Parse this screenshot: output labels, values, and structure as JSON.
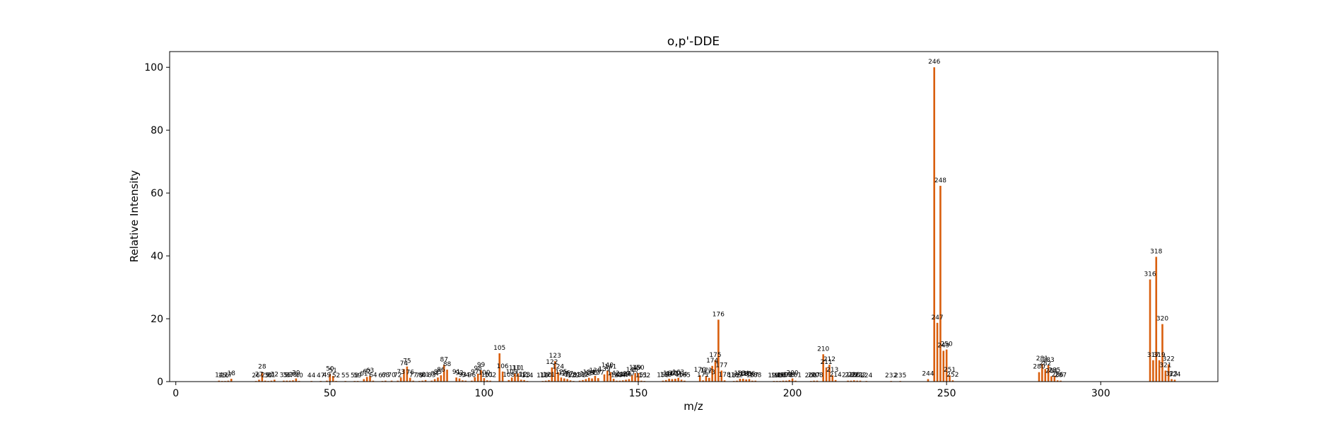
{
  "chart_data": {
    "type": "bar",
    "title": "o,p'-DDE",
    "xlabel": "m/z",
    "ylabel": "Relative Intensity",
    "xlim": [
      -2,
      338
    ],
    "ylim": [
      0,
      105
    ],
    "xticks": [
      0,
      50,
      100,
      150,
      200,
      250,
      300
    ],
    "yticks": [
      0,
      20,
      40,
      60,
      80,
      100
    ],
    "grid": false,
    "bar_color": "#d95f0e",
    "peaks": [
      {
        "mz": 14,
        "intensity": 0.3
      },
      {
        "mz": 15,
        "intensity": 0.2
      },
      {
        "mz": 16,
        "intensity": 0.2
      },
      {
        "mz": 17,
        "intensity": 0.3
      },
      {
        "mz": 18,
        "intensity": 0.9
      },
      {
        "mz": 26,
        "intensity": 0.2
      },
      {
        "mz": 27,
        "intensity": 0.6
      },
      {
        "mz": 28,
        "intensity": 3.0
      },
      {
        "mz": 29,
        "intensity": 0.3
      },
      {
        "mz": 30,
        "intensity": 0.2
      },
      {
        "mz": 31,
        "intensity": 0.3
      },
      {
        "mz": 32,
        "intensity": 0.6
      },
      {
        "mz": 35,
        "intensity": 0.3
      },
      {
        "mz": 36,
        "intensity": 0.3
      },
      {
        "mz": 37,
        "intensity": 0.3
      },
      {
        "mz": 38,
        "intensity": 0.4
      },
      {
        "mz": 39,
        "intensity": 1.0
      },
      {
        "mz": 40,
        "intensity": 0.2
      },
      {
        "mz": 44,
        "intensity": 0.2
      },
      {
        "mz": 47,
        "intensity": 0.2
      },
      {
        "mz": 49,
        "intensity": 0.3
      },
      {
        "mz": 50,
        "intensity": 2.4
      },
      {
        "mz": 51,
        "intensity": 1.8
      },
      {
        "mz": 52,
        "intensity": 0.2
      },
      {
        "mz": 55,
        "intensity": 0.2
      },
      {
        "mz": 58,
        "intensity": 0.2
      },
      {
        "mz": 59,
        "intensity": 0.2
      },
      {
        "mz": 61,
        "intensity": 0.8
      },
      {
        "mz": 62,
        "intensity": 1.5
      },
      {
        "mz": 63,
        "intensity": 1.8
      },
      {
        "mz": 64,
        "intensity": 0.3
      },
      {
        "mz": 67,
        "intensity": 0.2
      },
      {
        "mz": 68,
        "intensity": 0.3
      },
      {
        "mz": 70,
        "intensity": 0.3
      },
      {
        "mz": 72,
        "intensity": 0.3
      },
      {
        "mz": 73,
        "intensity": 1.3
      },
      {
        "mz": 74,
        "intensity": 4.0
      },
      {
        "mz": 75,
        "intensity": 4.8
      },
      {
        "mz": 76,
        "intensity": 1.2
      },
      {
        "mz": 77,
        "intensity": 0.3
      },
      {
        "mz": 79,
        "intensity": 0.2
      },
      {
        "mz": 80,
        "intensity": 0.3
      },
      {
        "mz": 81,
        "intensity": 0.5
      },
      {
        "mz": 83,
        "intensity": 0.3
      },
      {
        "mz": 84,
        "intensity": 0.8
      },
      {
        "mz": 85,
        "intensity": 1.3
      },
      {
        "mz": 86,
        "intensity": 2.0
      },
      {
        "mz": 87,
        "intensity": 5.3
      },
      {
        "mz": 88,
        "intensity": 3.8
      },
      {
        "mz": 91,
        "intensity": 1.3
      },
      {
        "mz": 92,
        "intensity": 1.0
      },
      {
        "mz": 93,
        "intensity": 0.4
      },
      {
        "mz": 94,
        "intensity": 0.3
      },
      {
        "mz": 96,
        "intensity": 0.3
      },
      {
        "mz": 97,
        "intensity": 1.4
      },
      {
        "mz": 98,
        "intensity": 2.5
      },
      {
        "mz": 99,
        "intensity": 3.6
      },
      {
        "mz": 100,
        "intensity": 1.1
      },
      {
        "mz": 101,
        "intensity": 0.4
      },
      {
        "mz": 102,
        "intensity": 0.3
      },
      {
        "mz": 105,
        "intensity": 9.0
      },
      {
        "mz": 106,
        "intensity": 3.2
      },
      {
        "mz": 108,
        "intensity": 0.5
      },
      {
        "mz": 109,
        "intensity": 1.3
      },
      {
        "mz": 110,
        "intensity": 2.6
      },
      {
        "mz": 111,
        "intensity": 2.6
      },
      {
        "mz": 112,
        "intensity": 0.6
      },
      {
        "mz": 113,
        "intensity": 0.5
      },
      {
        "mz": 114,
        "intensity": 0.2
      },
      {
        "mz": 119,
        "intensity": 0.2
      },
      {
        "mz": 120,
        "intensity": 0.3
      },
      {
        "mz": 121,
        "intensity": 0.5
      },
      {
        "mz": 122,
        "intensity": 4.5
      },
      {
        "mz": 123,
        "intensity": 6.5
      },
      {
        "mz": 124,
        "intensity": 3.0
      },
      {
        "mz": 125,
        "intensity": 1.3
      },
      {
        "mz": 126,
        "intensity": 1.0
      },
      {
        "mz": 127,
        "intensity": 0.8
      },
      {
        "mz": 128,
        "intensity": 0.4
      },
      {
        "mz": 129,
        "intensity": 0.2
      },
      {
        "mz": 131,
        "intensity": 0.3
      },
      {
        "mz": 132,
        "intensity": 0.5
      },
      {
        "mz": 133,
        "intensity": 0.8
      },
      {
        "mz": 134,
        "intensity": 1.2
      },
      {
        "mz": 135,
        "intensity": 1.0
      },
      {
        "mz": 136,
        "intensity": 1.8
      },
      {
        "mz": 137,
        "intensity": 1.1
      },
      {
        "mz": 139,
        "intensity": 2.3
      },
      {
        "mz": 140,
        "intensity": 3.5
      },
      {
        "mz": 141,
        "intensity": 3.0
      },
      {
        "mz": 142,
        "intensity": 0.9
      },
      {
        "mz": 143,
        "intensity": 0.3
      },
      {
        "mz": 144,
        "intensity": 0.3
      },
      {
        "mz": 145,
        "intensity": 0.4
      },
      {
        "mz": 146,
        "intensity": 0.6
      },
      {
        "mz": 147,
        "intensity": 0.8
      },
      {
        "mz": 148,
        "intensity": 2.0
      },
      {
        "mz": 149,
        "intensity": 2.7
      },
      {
        "mz": 150,
        "intensity": 2.7
      },
      {
        "mz": 151,
        "intensity": 0.3
      },
      {
        "mz": 152,
        "intensity": 0.2
      },
      {
        "mz": 158,
        "intensity": 0.3
      },
      {
        "mz": 159,
        "intensity": 0.5
      },
      {
        "mz": 160,
        "intensity": 0.9
      },
      {
        "mz": 161,
        "intensity": 0.8
      },
      {
        "mz": 162,
        "intensity": 0.9
      },
      {
        "mz": 163,
        "intensity": 1.2
      },
      {
        "mz": 164,
        "intensity": 0.6
      },
      {
        "mz": 165,
        "intensity": 0.3
      },
      {
        "mz": 170,
        "intensity": 2.0
      },
      {
        "mz": 171,
        "intensity": 0.4
      },
      {
        "mz": 172,
        "intensity": 1.8
      },
      {
        "mz": 173,
        "intensity": 1.2
      },
      {
        "mz": 174,
        "intensity": 5.0
      },
      {
        "mz": 175,
        "intensity": 6.8
      },
      {
        "mz": 176,
        "intensity": 19.7
      },
      {
        "mz": 177,
        "intensity": 3.5
      },
      {
        "mz": 178,
        "intensity": 0.4
      },
      {
        "mz": 181,
        "intensity": 0.2
      },
      {
        "mz": 182,
        "intensity": 0.3
      },
      {
        "mz": 183,
        "intensity": 0.9
      },
      {
        "mz": 184,
        "intensity": 0.9
      },
      {
        "mz": 185,
        "intensity": 0.7
      },
      {
        "mz": 186,
        "intensity": 0.8
      },
      {
        "mz": 187,
        "intensity": 0.3
      },
      {
        "mz": 188,
        "intensity": 0.3
      },
      {
        "mz": 194,
        "intensity": 0.2
      },
      {
        "mz": 195,
        "intensity": 0.2
      },
      {
        "mz": 196,
        "intensity": 0.2
      },
      {
        "mz": 197,
        "intensity": 0.3
      },
      {
        "mz": 198,
        "intensity": 0.3
      },
      {
        "mz": 199,
        "intensity": 0.5
      },
      {
        "mz": 200,
        "intensity": 1.0
      },
      {
        "mz": 201,
        "intensity": 0.3
      },
      {
        "mz": 206,
        "intensity": 0.2
      },
      {
        "mz": 207,
        "intensity": 0.3
      },
      {
        "mz": 208,
        "intensity": 0.3
      },
      {
        "mz": 210,
        "intensity": 8.7
      },
      {
        "mz": 211,
        "intensity": 4.5
      },
      {
        "mz": 212,
        "intensity": 5.4
      },
      {
        "mz": 213,
        "intensity": 2.0
      },
      {
        "mz": 214,
        "intensity": 0.5
      },
      {
        "mz": 218,
        "intensity": 0.3
      },
      {
        "mz": 219,
        "intensity": 0.3
      },
      {
        "mz": 220,
        "intensity": 0.4
      },
      {
        "mz": 221,
        "intensity": 0.3
      },
      {
        "mz": 222,
        "intensity": 0.3
      },
      {
        "mz": 224,
        "intensity": 0.2
      },
      {
        "mz": 232,
        "intensity": 0.2
      },
      {
        "mz": 235,
        "intensity": 0.2
      },
      {
        "mz": 244,
        "intensity": 0.8
      },
      {
        "mz": 246,
        "intensity": 100.0
      },
      {
        "mz": 247,
        "intensity": 18.7
      },
      {
        "mz": 248,
        "intensity": 62.3
      },
      {
        "mz": 249,
        "intensity": 9.8
      },
      {
        "mz": 250,
        "intensity": 10.2
      },
      {
        "mz": 251,
        "intensity": 2.0
      },
      {
        "mz": 252,
        "intensity": 0.4
      },
      {
        "mz": 280,
        "intensity": 3.0
      },
      {
        "mz": 281,
        "intensity": 5.6
      },
      {
        "mz": 282,
        "intensity": 4.0
      },
      {
        "mz": 283,
        "intensity": 5.2
      },
      {
        "mz": 284,
        "intensity": 1.7
      },
      {
        "mz": 285,
        "intensity": 1.9
      },
      {
        "mz": 286,
        "intensity": 0.4
      },
      {
        "mz": 287,
        "intensity": 0.3
      },
      {
        "mz": 316,
        "intensity": 32.5
      },
      {
        "mz": 317,
        "intensity": 6.8
      },
      {
        "mz": 318,
        "intensity": 39.7
      },
      {
        "mz": 319,
        "intensity": 6.8
      },
      {
        "mz": 320,
        "intensity": 18.3
      },
      {
        "mz": 321,
        "intensity": 3.5
      },
      {
        "mz": 322,
        "intensity": 5.5
      },
      {
        "mz": 323,
        "intensity": 0.8
      },
      {
        "mz": 324,
        "intensity": 0.6
      }
    ]
  }
}
